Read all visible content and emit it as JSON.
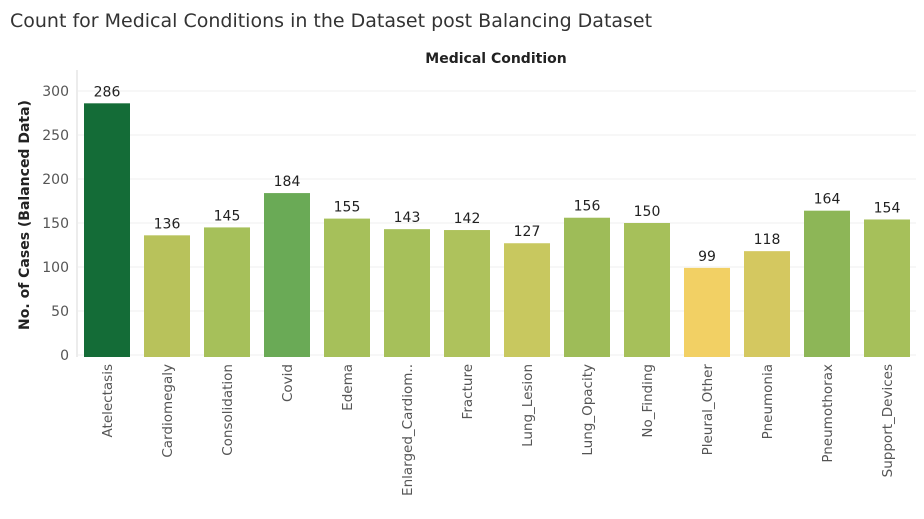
{
  "title": "Count for Medical Conditions in the Dataset post Balancing Dataset",
  "chart_data": {
    "type": "bar",
    "title": "Count for Medical Conditions in the Dataset post Balancing Dataset",
    "xlabel": "Medical Condition",
    "ylabel": "No. of Cases (Balanced Data)",
    "categories": [
      "Atelectasis",
      "Cardiomegaly",
      "Consolidation",
      "Covid",
      "Edema",
      "Enlarged_Cardiom..",
      "Fracture",
      "Lung_Lesion",
      "Lung_Opacity",
      "No_Finding",
      "Pleural_Other",
      "Pneumonia",
      "Pneumothorax",
      "Support_Devices"
    ],
    "values": [
      286,
      136,
      145,
      184,
      155,
      143,
      142,
      127,
      156,
      150,
      99,
      118,
      164,
      154
    ],
    "data_labels": [
      "286",
      "136",
      "145",
      "184",
      "155",
      "143",
      "142",
      "127",
      "156",
      "150",
      "99",
      "118",
      "164",
      "154"
    ],
    "yticks": [
      0,
      50,
      100,
      150,
      200,
      250,
      300
    ],
    "ytick_labels": [
      "0",
      "50",
      "100",
      "150",
      "200",
      "250",
      "300"
    ],
    "ylim": [
      0,
      300
    ],
    "grid": true,
    "colors": [
      "#146c37",
      "#b8c25b",
      "#a6c05a",
      "#6aaa56",
      "#a6c05a",
      "#a6c05a",
      "#aec25c",
      "#c8c85f",
      "#9ebc58",
      "#a6c05a",
      "#f2d064",
      "#d4c860",
      "#8db657",
      "#a6c05a"
    ]
  }
}
